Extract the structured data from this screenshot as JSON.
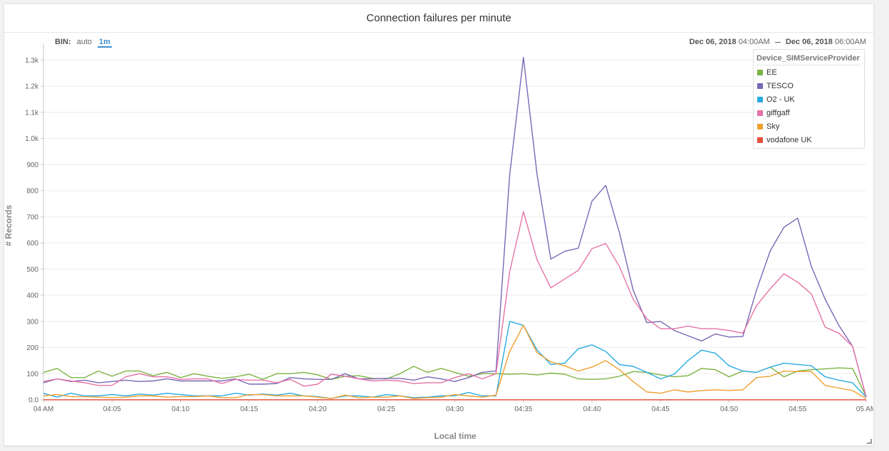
{
  "panel": {
    "title": "Connection failures per minute",
    "bin_label": "BIN:",
    "bin_options": [
      "auto",
      "1m"
    ],
    "bin_selected": "1m",
    "range": {
      "start_date": "Dec 06, 2018",
      "start_time": "04:00AM",
      "end_date": "Dec 06, 2018",
      "end_time": "06:00AM"
    },
    "legend_title": "Device_SIMServiceProvider"
  },
  "chart_data": {
    "type": "line",
    "xlabel": "Local time",
    "ylabel": "# Records",
    "xlim": [
      0,
      60
    ],
    "ylim": [
      0,
      1350
    ],
    "grid": true,
    "legend_position": "top-right",
    "x_tick_values": [
      0,
      5,
      10,
      15,
      20,
      25,
      30,
      35,
      40,
      45,
      50,
      55,
      60
    ],
    "x_tick_labels": [
      "04 AM",
      "04:05",
      "04:10",
      "04:15",
      "04:20",
      "04:25",
      "04:30",
      "04:35",
      "04:40",
      "04:45",
      "04:50",
      "04:55",
      "05 AM"
    ],
    "y_tick_values": [
      0,
      100,
      200,
      300,
      400,
      500,
      600,
      700,
      800,
      900,
      1000,
      1100,
      1200,
      1300
    ],
    "y_tick_labels": [
      "0.0",
      "100",
      "200",
      "300",
      "400",
      "500",
      "600",
      "700",
      "800",
      "900",
      "1.0k",
      "1.1k",
      "1.2k",
      "1.3k"
    ],
    "series": [
      {
        "name": "EE",
        "color": "#7cb342",
        "values": [
          105,
          120,
          85,
          85,
          110,
          90,
          110,
          110,
          92,
          105,
          85,
          100,
          90,
          82,
          88,
          98,
          78,
          100,
          100,
          105,
          95,
          78,
          90,
          92,
          82,
          80,
          100,
          128,
          105,
          120,
          105,
          90,
          100,
          100,
          98,
          100,
          95,
          102,
          98,
          80,
          78,
          80,
          90,
          108,
          105,
          95,
          88,
          92,
          120,
          115,
          88,
          110,
          105,
          125,
          88,
          110,
          115,
          118,
          122,
          120,
          12
        ]
      },
      {
        "name": "TESCO",
        "color": "#7b68b5",
        "values": [
          65,
          80,
          70,
          75,
          65,
          70,
          75,
          70,
          72,
          80,
          72,
          72,
          72,
          72,
          80,
          60,
          60,
          62,
          85,
          80,
          78,
          78,
          100,
          80,
          80,
          82,
          82,
          75,
          88,
          80,
          70,
          85,
          105,
          110,
          860,
          1310,
          860,
          538,
          568,
          580,
          760,
          820,
          640,
          420,
          295,
          300,
          265,
          245,
          225,
          252,
          240,
          242,
          420,
          570,
          660,
          695,
          510,
          385,
          285,
          205,
          10
        ]
      },
      {
        "name": "O2 - UK",
        "color": "#29abe2",
        "values": [
          25,
          10,
          25,
          15,
          15,
          20,
          15,
          22,
          18,
          25,
          20,
          15,
          15,
          15,
          25,
          18,
          22,
          18,
          25,
          15,
          12,
          5,
          15,
          15,
          10,
          20,
          15,
          8,
          10,
          15,
          15,
          28,
          15,
          15,
          300,
          285,
          190,
          135,
          140,
          195,
          210,
          185,
          135,
          128,
          105,
          80,
          98,
          150,
          190,
          178,
          130,
          110,
          105,
          125,
          140,
          135,
          130,
          88,
          75,
          65,
          10
        ]
      },
      {
        "name": "giffgaff",
        "color": "#e573a8",
        "values": [
          70,
          80,
          72,
          65,
          55,
          55,
          88,
          100,
          88,
          88,
          78,
          80,
          80,
          62,
          78,
          75,
          75,
          65,
          78,
          52,
          60,
          98,
          90,
          80,
          72,
          75,
          72,
          62,
          65,
          65,
          85,
          100,
          80,
          100,
          490,
          720,
          535,
          428,
          462,
          495,
          578,
          598,
          510,
          385,
          310,
          272,
          272,
          282,
          272,
          272,
          265,
          255,
          360,
          425,
          482,
          450,
          405,
          278,
          255,
          205,
          10
        ]
      },
      {
        "name": "Sky",
        "color": "#f0a030",
        "values": [
          15,
          20,
          12,
          12,
          10,
          8,
          10,
          15,
          15,
          10,
          12,
          12,
          15,
          8,
          8,
          20,
          20,
          15,
          15,
          15,
          10,
          5,
          18,
          8,
          10,
          10,
          15,
          5,
          8,
          10,
          20,
          15,
          10,
          18,
          185,
          285,
          180,
          145,
          130,
          110,
          125,
          150,
          115,
          70,
          30,
          25,
          38,
          30,
          35,
          38,
          35,
          38,
          85,
          90,
          110,
          108,
          108,
          55,
          45,
          35,
          5
        ]
      },
      {
        "name": "vodafone UK",
        "color": "#e0523c",
        "values": [
          0,
          0,
          0,
          0,
          0,
          0,
          0,
          0,
          0,
          0,
          0,
          0,
          0,
          0,
          0,
          0,
          0,
          0,
          0,
          0,
          0,
          0,
          0,
          0,
          0,
          0,
          0,
          0,
          0,
          0,
          0,
          0,
          0,
          0,
          0,
          0,
          0,
          0,
          0,
          0,
          0,
          0,
          0,
          0,
          0,
          0,
          0,
          0,
          0,
          0,
          0,
          0,
          0,
          0,
          0,
          0,
          0,
          0,
          0,
          0,
          0
        ]
      }
    ]
  }
}
